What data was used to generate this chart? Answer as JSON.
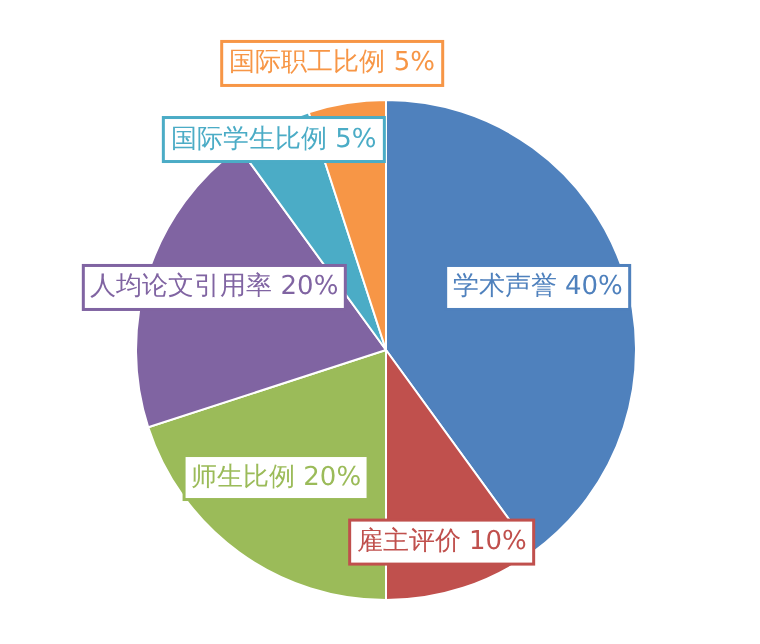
{
  "chart_data": {
    "type": "pie",
    "categories": [
      "学术声誉",
      "雇主评价",
      "师生比例",
      "人均论文引用率",
      "国际学生比例",
      "国际职工比例"
    ],
    "values": [
      40,
      10,
      20,
      20,
      5,
      5
    ],
    "value_labels": [
      "40%",
      "10%",
      "20%",
      "20%",
      "5%",
      "5%"
    ],
    "colors": [
      "#4f81bd",
      "#c0504d",
      "#9bbb59",
      "#8064a2",
      "#4bacc6",
      "#f79646"
    ]
  }
}
